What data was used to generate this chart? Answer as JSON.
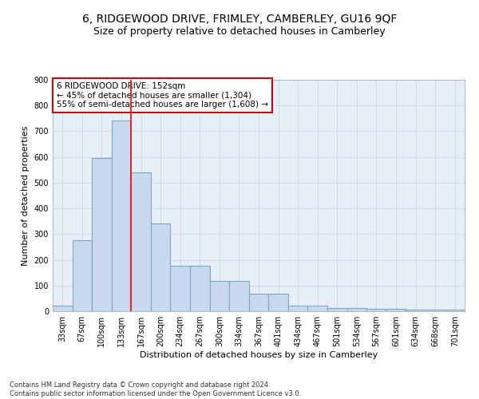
{
  "title": "6, RIDGEWOOD DRIVE, FRIMLEY, CAMBERLEY, GU16 9QF",
  "subtitle": "Size of property relative to detached houses in Camberley",
  "xlabel": "Distribution of detached houses by size in Camberley",
  "ylabel": "Number of detached properties",
  "bar_values": [
    22,
    275,
    597,
    741,
    540,
    342,
    178,
    178,
    118,
    118,
    67,
    67,
    22,
    22,
    11,
    11,
    8,
    8,
    6,
    6,
    5
  ],
  "categories": [
    "33sqm",
    "67sqm",
    "100sqm",
    "133sqm",
    "167sqm",
    "200sqm",
    "234sqm",
    "267sqm",
    "300sqm",
    "334sqm",
    "367sqm",
    "401sqm",
    "434sqm",
    "467sqm",
    "501sqm",
    "534sqm",
    "567sqm",
    "601sqm",
    "634sqm",
    "668sqm",
    "701sqm"
  ],
  "bar_color": "#c8d8ee",
  "bar_edge_color": "#7aaabb",
  "grid_color": "#d0d8e8",
  "bg_color": "#e8eef8",
  "red_line_x": 3.5,
  "annotation_text": "6 RIDGEWOOD DRIVE: 152sqm\n← 45% of detached houses are smaller (1,304)\n55% of semi-detached houses are larger (1,608) →",
  "annotation_box_color": "#cc0000",
  "ylim": [
    0,
    900
  ],
  "yticks": [
    0,
    100,
    200,
    300,
    400,
    500,
    600,
    700,
    800,
    900
  ],
  "footnote": "Contains HM Land Registry data © Crown copyright and database right 2024.\nContains public sector information licensed under the Open Government Licence v3.0.",
  "title_fontsize": 10,
  "subtitle_fontsize": 9,
  "axis_label_fontsize": 8,
  "tick_fontsize": 7,
  "annotation_fontsize": 7.5,
  "footnote_fontsize": 6
}
